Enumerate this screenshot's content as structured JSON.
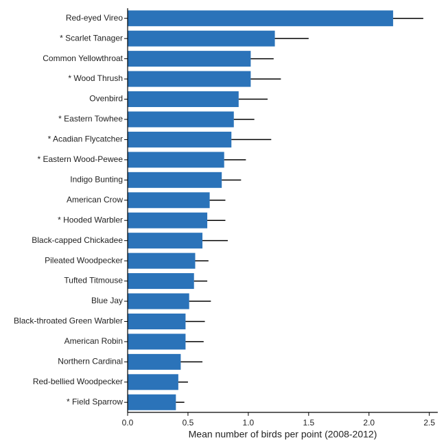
{
  "chart_data": {
    "type": "bar",
    "orientation": "horizontal",
    "x_label": "Mean number of birds per point (2008-2012)",
    "categories": [
      "Red-eyed Vireo",
      "* Scarlet Tanager",
      "Common Yellowthroat",
      "* Wood Thrush",
      "Ovenbird",
      "* Eastern Towhee",
      "* Acadian Flycatcher",
      "* Eastern Wood-Pewee",
      "Indigo Bunting",
      "American Crow",
      "* Hooded Warbler",
      "Black-capped Chickadee",
      "Pileated Woodpecker",
      "Tufted Titmouse",
      "Blue Jay",
      "Black-throated Green Warbler",
      "American Robin",
      "Northern Cardinal",
      "Red-bellied Woodpecker",
      "* Field Sparrow"
    ],
    "values": [
      2.2,
      1.22,
      1.02,
      1.02,
      0.92,
      0.88,
      0.86,
      0.8,
      0.78,
      0.68,
      0.66,
      0.62,
      0.56,
      0.55,
      0.51,
      0.48,
      0.48,
      0.44,
      0.42,
      0.4
    ],
    "errors": [
      0.25,
      0.28,
      0.19,
      0.25,
      0.24,
      0.17,
      0.33,
      0.18,
      0.16,
      0.13,
      0.15,
      0.21,
      0.11,
      0.11,
      0.18,
      0.16,
      0.15,
      0.18,
      0.08,
      0.07
    ],
    "color": "#2b73b9",
    "xlim": [
      0,
      2.57
    ],
    "xticks": [
      {
        "value": 0,
        "label": "0.0"
      },
      0.5,
      {
        "value": 1,
        "label": "1.0"
      },
      1.5,
      {
        "value": 2,
        "label": "2.0"
      },
      2.5
    ]
  }
}
